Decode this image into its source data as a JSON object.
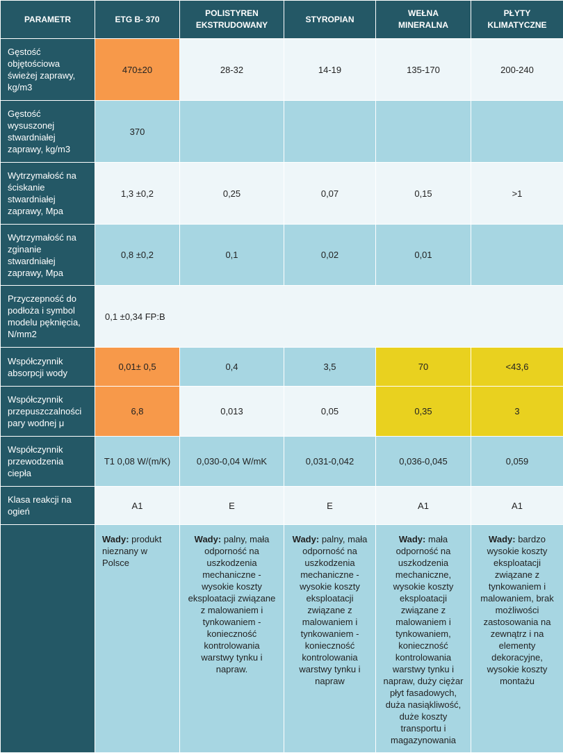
{
  "table": {
    "header": [
      "PARAMETR",
      "ETG B- 370",
      "POLISTYREN EKSTRUDOWANY",
      "STYROPIAN",
      "WEŁNA MINERALNA",
      "PŁYTY KLIMATYCZNE"
    ],
    "rows": [
      {
        "label": "Gęstość objętościowa świeżej zaprawy, kg/m3",
        "cells": [
          "470±20",
          "28-32",
          "14-19",
          "135-170",
          "200-240"
        ]
      },
      {
        "label": "Gęstość wysuszonej stwardniałej zaprawy, kg/m3",
        "cells": [
          "370",
          null,
          null,
          null,
          null
        ]
      },
      {
        "label": "Wytrzymałość na ściskanie stwardniałej zaprawy, Mpa",
        "cells": [
          "1,3 ±0,2",
          "0,25",
          "0,07",
          "0,15",
          ">1"
        ]
      },
      {
        "label": "Wytrzymałość na zginanie stwardniałej zaprawy, Mpa",
        "cells": [
          "0,8 ±0,2",
          "0,1",
          "0,02",
          "0,01",
          null
        ]
      },
      {
        "label": "Przyczepność do podłoża i symbol modelu pęknięcia, N/mm2",
        "cells": [
          "0,1 ±0,34 FP:B"
        ]
      },
      {
        "label": "Współczynnik absorpcji wody",
        "cells": [
          "0,01± 0,5",
          "0,4",
          "3,5",
          "70",
          "<43,6"
        ]
      },
      {
        "label": "Współczynnik przepuszczalności pary wodnej μ",
        "cells": [
          "6,8",
          "0,013",
          "0,05",
          "0,35",
          "3"
        ]
      },
      {
        "label": "Współczynnik przewodzenia ciepła",
        "cells": [
          "T1 0,08 W/(m/K)",
          "0,030-0,04 W/mK",
          "0,031-0,042",
          "0,036-0,045",
          "0,059"
        ]
      },
      {
        "label": "Klasa reakcji na ogień",
        "cells": [
          "A1",
          "E",
          "E",
          "A1",
          "A1"
        ]
      }
    ],
    "notes": [
      {
        "bold": "Wady:",
        "text": "produkt nieznany w Polsce"
      },
      {
        "bold": "Wady:",
        "text": "palny, mała odporność na uszkodzenia mechaniczne - wysokie koszty eksploatacji związane z malowaniem i tynkowaniem - konieczność kontrolowania warstwy tynku i napraw."
      },
      {
        "bold": "Wady:",
        "text": "palny, mała odporność na uszkodzenia mechaniczne - wysokie koszty eksploatacji związane z malowaniem i tynkowaniem - konieczność kontrolowania warstwy tynku i napraw"
      },
      {
        "bold": "Wady:",
        "text": "mała odporność na uszkodzenia mechaniczne, wysokie koszty eksploatacji związane z malowaniem i tynkowaniem, konieczność kontrolowania warstwy tynku i napraw, duży ciężar płyt fasadowych, duża nasiąkliwość, duże koszty transportu i magazynowania"
      },
      {
        "bold": "Wady:",
        "text": "bardzo wysokie koszty eksploatacji związane z tynkowaniem i malowaniem, brak możliwości zastosowania na zewnątrz i na elementy dekoracyjne, wysokie koszty montażu"
      }
    ]
  }
}
